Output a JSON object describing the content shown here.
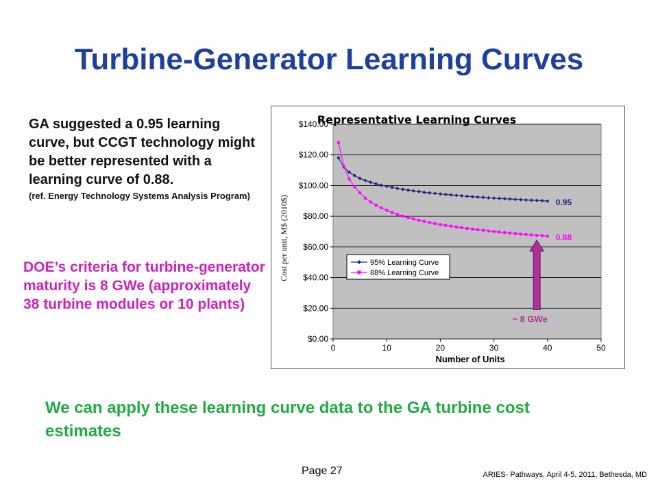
{
  "slide": {
    "title": "Turbine-Generator Learning Curves",
    "ga_text": "GA suggested a 0.95 learning curve, but CCGT technology might be better represented with a learning curve of 0.88.",
    "ga_ref": "(ref. Energy Technology Systems Analysis Program)",
    "doe_text": "DOE’s criteria for turbine-generator maturity is 8 GWe (approximately 38 turbine modules or 10 plants)",
    "bottom_text": "We can apply these learning curve data to the GA turbine cost estimates",
    "page_number": "Page 27",
    "footer": "ARIES- Pathways, April 4-5, 2011, Bethesda, MD"
  },
  "colors": {
    "title": "#1f3f9f",
    "doe_text": "#cc22bb",
    "bottom_text": "#22aa44",
    "series_95": "#1a237e",
    "series_88": "#ff00ff",
    "arrow": "#b0309a",
    "plot_bg": "#c0c0c0"
  },
  "chart_data": {
    "type": "line",
    "title": "Representative Learning Curves",
    "xlabel": "Number of Units",
    "ylabel": "Cost per unit, M$ (2010$)",
    "xlim": [
      0,
      50
    ],
    "ylim": [
      0,
      140
    ],
    "x_ticks": [
      "0",
      "10",
      "20",
      "30",
      "40",
      "50"
    ],
    "y_ticks": [
      "$0.00",
      "$20.00",
      "$40.00",
      "$60.00",
      "$80.00",
      "$100.00",
      "$120.00",
      "$140.00"
    ],
    "grid": "horizontal",
    "legend_position": "left-middle",
    "series": [
      {
        "name": "95% Learning Curve",
        "end_label": "0.95",
        "marker": "diamond",
        "x": [
          1,
          2,
          3,
          4,
          5,
          6,
          7,
          8,
          9,
          10,
          11,
          12,
          13,
          14,
          15,
          16,
          17,
          18,
          19,
          20,
          21,
          22,
          23,
          24,
          25,
          26,
          27,
          28,
          29,
          30,
          31,
          32,
          33,
          34,
          35,
          36,
          37,
          38,
          39,
          40
        ],
        "values": [
          118.0,
          112.1,
          108.7,
          106.5,
          104.7,
          103.3,
          102.1,
          101.1,
          100.2,
          99.5,
          98.8,
          98.1,
          97.5,
          97.0,
          96.5,
          96.1,
          95.6,
          95.2,
          94.9,
          94.5,
          94.2,
          93.9,
          93.6,
          93.3,
          93.0,
          92.7,
          92.5,
          92.3,
          92.0,
          91.8,
          91.6,
          91.4,
          91.2,
          91.0,
          90.8,
          90.6,
          90.4,
          90.3,
          90.1,
          89.9
        ]
      },
      {
        "name": "88% Learning Curve",
        "end_label": "0.88",
        "marker": "square",
        "x": [
          1,
          2,
          3,
          4,
          5,
          6,
          7,
          8,
          9,
          10,
          11,
          12,
          13,
          14,
          15,
          16,
          17,
          18,
          19,
          20,
          21,
          22,
          23,
          24,
          25,
          26,
          27,
          28,
          29,
          30,
          31,
          32,
          33,
          34,
          35,
          36,
          37,
          38,
          39,
          40
        ],
        "values": [
          128.0,
          112.6,
          104.3,
          99.1,
          95.3,
          91.8,
          89.3,
          87.2,
          85.4,
          83.8,
          82.4,
          81.2,
          80.1,
          79.1,
          78.2,
          77.4,
          76.6,
          75.9,
          75.2,
          74.6,
          74.0,
          73.5,
          73.0,
          72.5,
          72.0,
          71.6,
          71.2,
          70.8,
          70.4,
          70.0,
          69.7,
          69.3,
          69.0,
          68.7,
          68.4,
          68.1,
          67.8,
          67.5,
          67.3,
          67.0
        ]
      }
    ],
    "annotation": {
      "text": "~ 8 GWe",
      "x": 38
    }
  }
}
